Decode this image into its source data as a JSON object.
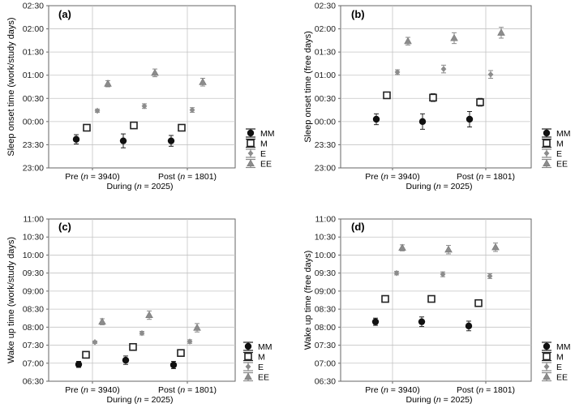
{
  "figure": {
    "legend_labels": [
      "MM",
      "M",
      "E",
      "EE"
    ],
    "series_colors": {
      "MM": "#111111",
      "M": "#222222",
      "E": "#8c8c8c",
      "EE": "#8c8c8c"
    },
    "grid_color": "#c4c4c4",
    "axis_color": "#666666"
  },
  "chart_data": [
    {
      "panel": "(a)",
      "type": "scatter",
      "ylabel": "Sleep onset time (work/study days)",
      "yticks": [
        "02:30",
        "02:00",
        "01:30",
        "01:00",
        "00:30",
        "00:00",
        "23:30",
        "23:00"
      ],
      "ylim_min": [
        -60,
        150
      ],
      "ytick_step_min": 30,
      "groups": [
        "Pre",
        "During",
        "Post"
      ],
      "group_labels": {
        "pre": "Pre (",
        "pre_n": "n",
        "pre_rest": " = 3940)",
        "during": "During (",
        "during_n": "n",
        "during_rest": " = 2025)",
        "post": "Post (",
        "post_n": "n",
        "post_rest": " = 1801)"
      },
      "series": [
        {
          "name": "MM",
          "values_min": [
            -23,
            -25,
            -25
          ],
          "err_min": [
            6,
            9,
            7
          ]
        },
        {
          "name": "M",
          "values_min": [
            -8,
            -5,
            -8
          ],
          "err_min": [
            3,
            4,
            4
          ]
        },
        {
          "name": "E",
          "values_min": [
            14,
            20,
            15
          ],
          "err_min": [
            2,
            3,
            3
          ]
        },
        {
          "name": "EE",
          "values_min": [
            49,
            63,
            51
          ],
          "err_min": [
            4,
            5,
            5
          ]
        }
      ]
    },
    {
      "panel": "(b)",
      "type": "scatter",
      "ylabel": "Sleep onset time (free days)",
      "yticks": [
        "02:30",
        "02:00",
        "01:30",
        "01:00",
        "00:30",
        "00:00",
        "23:30",
        "23:00"
      ],
      "ylim_min": [
        -60,
        150
      ],
      "ytick_step_min": 30,
      "groups": [
        "Pre",
        "During",
        "Post"
      ],
      "group_labels": {
        "pre": "Pre (",
        "pre_n": "n",
        "pre_rest": " = 3940)",
        "during": "During (",
        "during_n": "n",
        "during_rest": " = 2025)",
        "post": "Post (",
        "post_n": "n",
        "post_rest": " = 1801)"
      },
      "series": [
        {
          "name": "MM",
          "values_min": [
            3,
            0,
            3
          ],
          "err_min": [
            7,
            10,
            10
          ]
        },
        {
          "name": "M",
          "values_min": [
            34,
            31,
            25
          ],
          "err_min": [
            3,
            5,
            5
          ]
        },
        {
          "name": "E",
          "values_min": [
            64,
            68,
            61
          ],
          "err_min": [
            3,
            5,
            5
          ]
        },
        {
          "name": "EE",
          "values_min": [
            104,
            108,
            115
          ],
          "err_min": [
            5,
            7,
            7
          ]
        }
      ]
    },
    {
      "panel": "(c)",
      "type": "scatter",
      "ylabel": "Wake up time (work/study days)",
      "yticks": [
        "11:00",
        "10:30",
        "10:00",
        "09:30",
        "09:00",
        "08:30",
        "08:00",
        "07:30",
        "07:00",
        "06:30"
      ],
      "ylim_min": [
        390,
        660
      ],
      "ytick_step_min": 30,
      "groups": [
        "Pre",
        "During",
        "Post"
      ],
      "group_labels": {
        "pre": "Pre (",
        "pre_n": "n",
        "pre_rest": " = 3940)",
        "during": "During (",
        "during_n": "n",
        "during_rest": " = 2025)",
        "post": "Post (",
        "post_n": "n",
        "post_rest": " = 1801)"
      },
      "series": [
        {
          "name": "MM",
          "values_min": [
            418,
            425,
            417
          ],
          "err_min": [
            5,
            7,
            6
          ]
        },
        {
          "name": "M",
          "values_min": [
            434,
            447,
            437
          ],
          "err_min": [
            3,
            4,
            4
          ]
        },
        {
          "name": "E",
          "values_min": [
            455,
            470,
            456
          ],
          "err_min": [
            2,
            3,
            3
          ]
        },
        {
          "name": "EE",
          "values_min": [
            489,
            500,
            479
          ],
          "err_min": [
            5,
            7,
            7
          ]
        }
      ]
    },
    {
      "panel": "(d)",
      "type": "scatter",
      "ylabel": "Wake up time (free days)",
      "yticks": [
        "11:00",
        "10:30",
        "10:00",
        "09:30",
        "09:00",
        "08:30",
        "08:00",
        "07:30",
        "07:00",
        "06:30"
      ],
      "ylim_min": [
        390,
        660
      ],
      "ytick_step_min": 30,
      "groups": [
        "Pre",
        "During",
        "Post"
      ],
      "group_labels": {
        "pre": "Pre (",
        "pre_n": "n",
        "pre_rest": " = 3940)",
        "during": "During (",
        "during_n": "n",
        "during_rest": " = 2025)",
        "post": "Post (",
        "post_n": "n",
        "post_rest": " = 1801)"
      },
      "series": [
        {
          "name": "MM",
          "values_min": [
            489,
            489,
            482
          ],
          "err_min": [
            6,
            8,
            8
          ]
        },
        {
          "name": "M",
          "values_min": [
            527,
            527,
            520
          ],
          "err_min": [
            3,
            5,
            5
          ]
        },
        {
          "name": "E",
          "values_min": [
            570,
            568,
            565
          ],
          "err_min": [
            3,
            4,
            4
          ]
        },
        {
          "name": "EE",
          "values_min": [
            612,
            609,
            613
          ],
          "err_min": [
            5,
            7,
            7
          ]
        }
      ]
    }
  ]
}
